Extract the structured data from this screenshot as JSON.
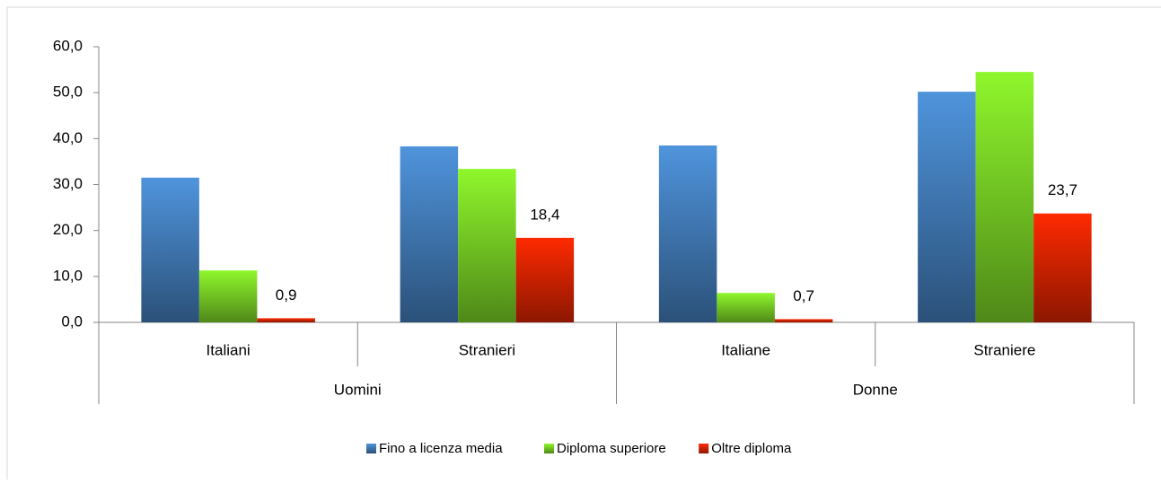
{
  "chart_data": {
    "type": "bar",
    "categories": [
      "Italiani",
      "Stranieri",
      "Italiane",
      "Straniere"
    ],
    "groups": [
      "Uomini",
      "Donne"
    ],
    "series": [
      {
        "name": "Fino a licenza media",
        "color": "#4f94dc",
        "values": [
          31.5,
          38.3,
          38.5,
          50.2
        ]
      },
      {
        "name": "Diploma superiore",
        "color": "#8ff72c",
        "values": [
          11.3,
          33.4,
          6.4,
          54.5
        ]
      },
      {
        "name": "Oltre diploma",
        "color": "#ff2a00",
        "values": [
          0.9,
          18.4,
          0.7,
          23.7
        ],
        "value_labels": [
          "0,9",
          "18,4",
          "0,7",
          "23,7"
        ]
      }
    ],
    "ylim": [
      0,
      60
    ],
    "yticks": [
      {
        "value": 0,
        "label": "0,0"
      },
      {
        "value": 10,
        "label": "10,0"
      },
      {
        "value": 20,
        "label": "20,0"
      },
      {
        "value": 30,
        "label": "30,0"
      },
      {
        "value": 40,
        "label": "40,0"
      },
      {
        "value": 50,
        "label": "50,0"
      },
      {
        "value": 60,
        "label": "60,0"
      }
    ],
    "legend": "bottom"
  }
}
